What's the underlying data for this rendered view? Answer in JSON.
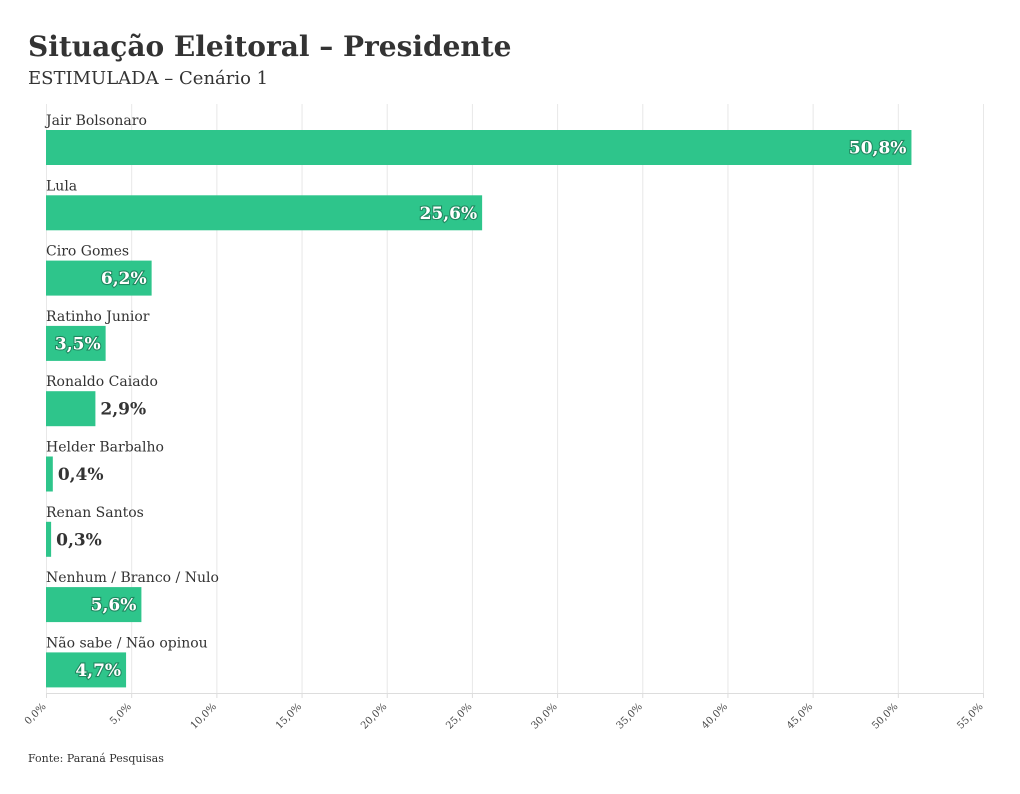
{
  "title": "Situação Eleitoral – Presidente",
  "subtitle": "ESTIMULADA – Cenário 1",
  "source": "Fonte: Paraná Pesquisas",
  "colors": {
    "bar": "#2ec58b"
  },
  "chart_data": {
    "type": "bar",
    "orientation": "horizontal",
    "categories": [
      "Jair Bolsonaro",
      "Lula",
      "Ciro Gomes",
      "Ratinho Junior",
      "Ronaldo Caiado",
      "Helder Barbalho",
      "Renan Santos",
      "Nenhum / Branco / Nulo",
      "Não sabe / Não opinou"
    ],
    "values": [
      50.8,
      25.6,
      6.2,
      3.5,
      2.9,
      0.4,
      0.3,
      5.6,
      4.7
    ],
    "value_labels": [
      "50,8%",
      "25,6%",
      "6,2%",
      "3,5%",
      "2,9%",
      "0,4%",
      "0,3%",
      "5,6%",
      "4,7%"
    ],
    "xlim": [
      0,
      55
    ],
    "xticks": [
      0,
      5,
      10,
      15,
      20,
      25,
      30,
      35,
      40,
      45,
      50,
      55
    ],
    "xtick_labels": [
      "0,0%",
      "5,0%",
      "10,0%",
      "15,0%",
      "20,0%",
      "25,0%",
      "30,0%",
      "35,0%",
      "40,0%",
      "45,0%",
      "50,0%",
      "55,0%"
    ],
    "grid": true,
    "legend": "none"
  }
}
